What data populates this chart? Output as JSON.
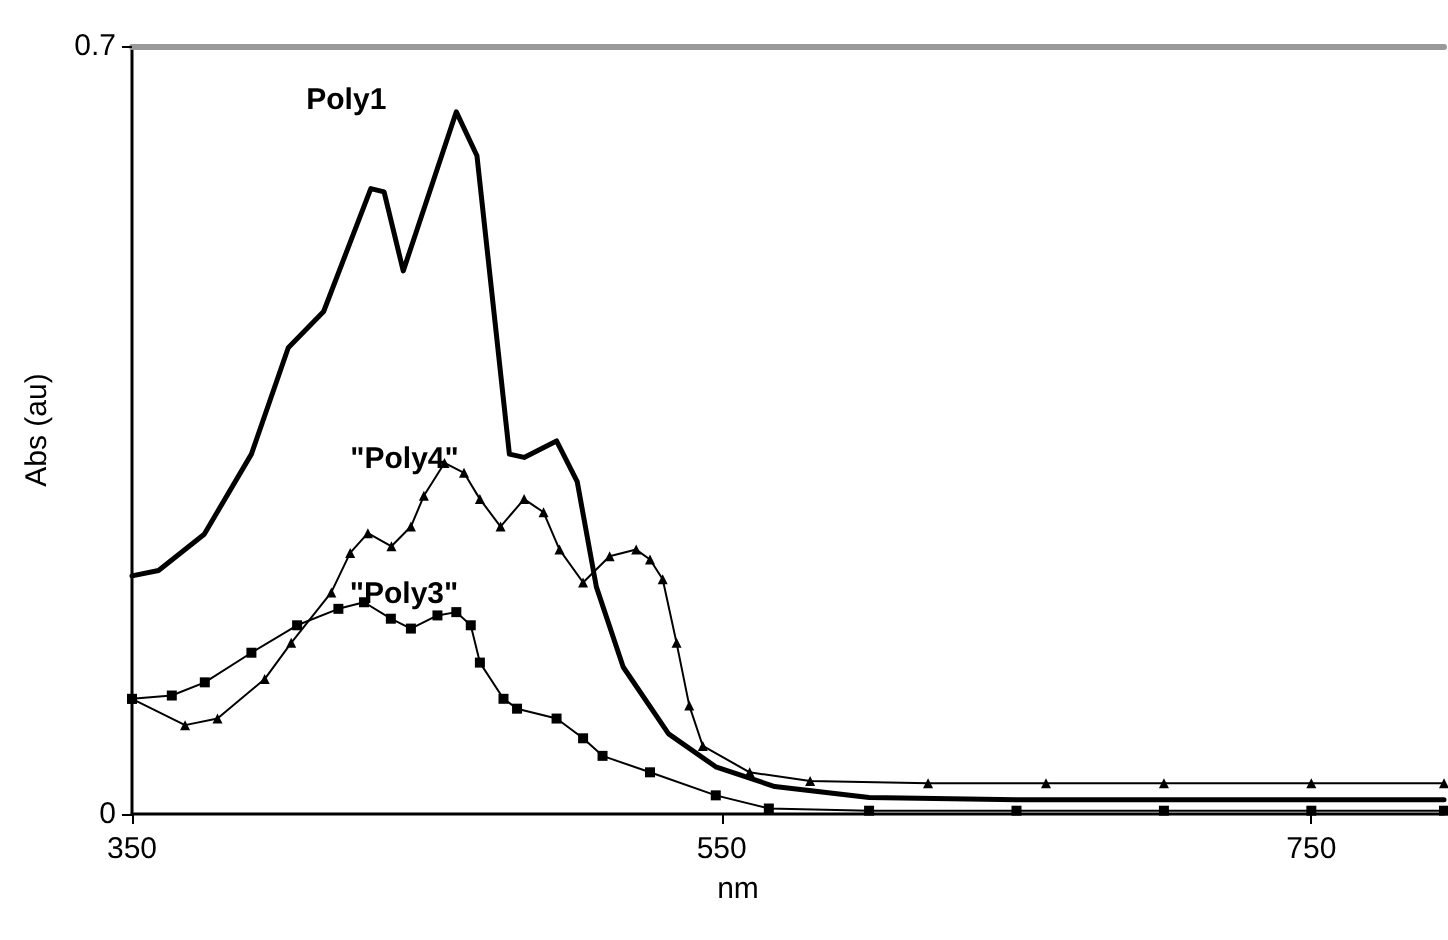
{
  "chart_data": {
    "type": "line",
    "xlabel": "nm",
    "ylabel": "Abs (au)",
    "xlim": [
      350,
      795
    ],
    "xticks": [
      350,
      550,
      750
    ],
    "ylim": [
      0,
      0.7
    ],
    "yticks": [
      0,
      0.7
    ],
    "grid": false,
    "legend": false,
    "series": [
      {
        "name": "Poly1",
        "color": "#000000",
        "marker": "none",
        "x": [
          350,
          359,
          374.5,
          390.5,
          403,
          415,
          431,
          435.5,
          442,
          460,
          467,
          478,
          483,
          494,
          501,
          507.5,
          516.6,
          532,
          548,
          568,
          600,
          650,
          700,
          750,
          795
        ],
        "values": [
          0.217,
          0.222,
          0.255,
          0.328,
          0.425,
          0.458,
          0.57,
          0.567,
          0.495,
          0.64,
          0.6,
          0.328,
          0.325,
          0.34,
          0.303,
          0.207,
          0.134,
          0.073,
          0.043,
          0.025,
          0.015,
          0.013,
          0.013,
          0.013,
          0.013
        ]
      },
      {
        "name": "\"Poly4\"",
        "color": "#000000",
        "marker": "triangle",
        "x": [
          350,
          368,
          379,
          395,
          404,
          417.6,
          424,
          430,
          438,
          444.6,
          449,
          456,
          462.6,
          468,
          475,
          483,
          489.6,
          495,
          503,
          512,
          521,
          525.7,
          530,
          534.7,
          539,
          543.6,
          559.5,
          580,
          620,
          660,
          700,
          750,
          795
        ],
        "values": [
          0.105,
          0.081,
          0.087,
          0.123,
          0.156,
          0.202,
          0.238,
          0.256,
          0.244,
          0.262,
          0.29,
          0.32,
          0.311,
          0.287,
          0.262,
          0.287,
          0.275,
          0.241,
          0.211,
          0.235,
          0.241,
          0.232,
          0.214,
          0.156,
          0.099,
          0.062,
          0.038,
          0.03,
          0.028,
          0.028,
          0.028,
          0.028,
          0.028
        ]
      },
      {
        "name": "\"Poly3\"",
        "color": "#000000",
        "marker": "square",
        "x": [
          350,
          363.5,
          374.7,
          390.5,
          406,
          420,
          428.7,
          437.8,
          444.6,
          453.6,
          460,
          464.9,
          468,
          476,
          480.6,
          494,
          503,
          509.6,
          525.7,
          548,
          566,
          600,
          650,
          700,
          750,
          795
        ],
        "values": [
          0.105,
          0.108,
          0.12,
          0.147,
          0.172,
          0.187,
          0.193,
          0.178,
          0.169,
          0.181,
          0.184,
          0.172,
          0.138,
          0.105,
          0.096,
          0.087,
          0.069,
          0.053,
          0.038,
          0.017,
          0.005,
          0.003,
          0.003,
          0.003,
          0.003,
          0.003
        ]
      }
    ]
  }
}
